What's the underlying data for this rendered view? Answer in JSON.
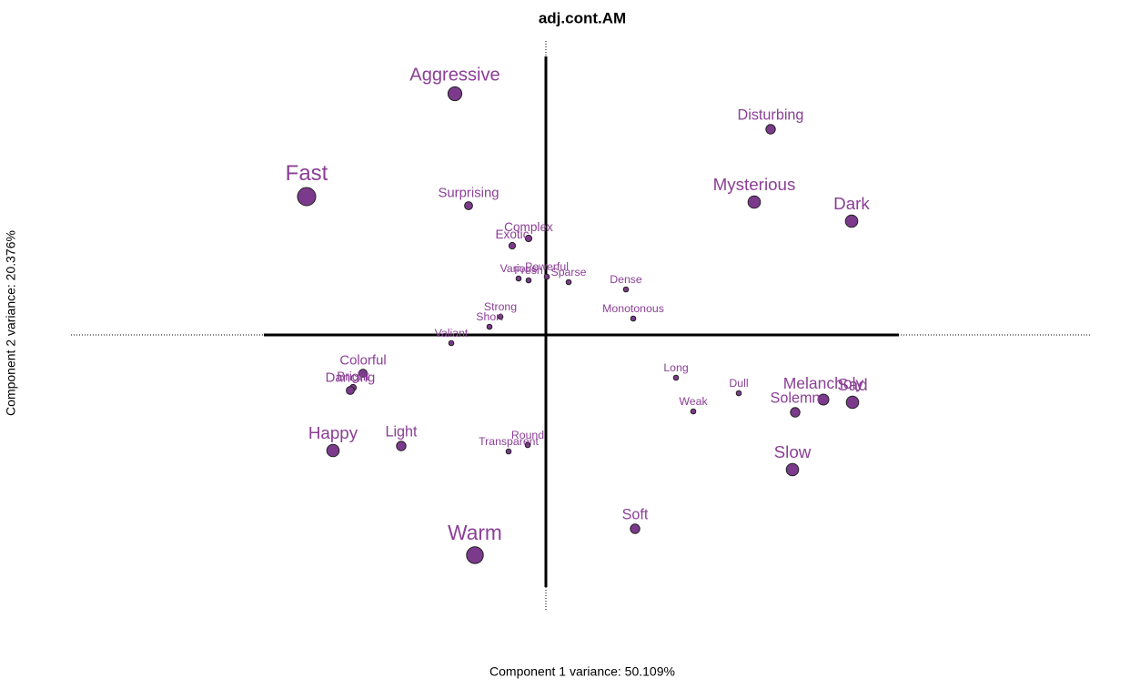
{
  "chart_data": {
    "type": "scatter",
    "title": "adj.cont.AM",
    "x_label": "Component 1 variance: 50.109%",
    "y_label": "Component 2 variance: 20.376%",
    "xlim": [
      -5.22,
      6.0
    ],
    "ylim": [
      -3.02,
      3.23
    ],
    "color": "#7b3a8c",
    "label_color": "#8b3f96",
    "labels": [
      "Aggressive",
      "Fast",
      "Disturbing",
      "Mysterious",
      "Dark",
      "Surprising",
      "Complex",
      "Exotic",
      "Various",
      "Fresh",
      "Powerful",
      "Sparse",
      "Dense",
      "Monotonous",
      "Strong",
      "Short",
      "Valiant",
      "Colorful",
      "Bright",
      "Dancing",
      "Happy",
      "Light",
      "Transparent",
      "Round",
      "Warm",
      "Soft",
      "Long",
      "Weak",
      "Dull",
      "Melancholy",
      "Solemn",
      "Sad",
      "Slow"
    ],
    "x": [
      -1.0,
      -2.63,
      2.47,
      2.29,
      3.36,
      -0.85,
      -0.19,
      -0.37,
      -0.3,
      -0.19,
      0.01,
      0.25,
      0.88,
      0.96,
      -0.5,
      -0.62,
      -1.04,
      -2.01,
      -2.12,
      -2.15,
      -2.34,
      -1.59,
      -0.41,
      -0.2,
      -0.78,
      0.98,
      1.43,
      1.62,
      2.12,
      3.05,
      2.74,
      3.37,
      2.71
    ],
    "values": [
      2.65,
      1.52,
      2.26,
      1.46,
      1.25,
      1.42,
      1.06,
      0.98,
      0.62,
      0.6,
      0.64,
      0.58,
      0.5,
      0.18,
      0.2,
      0.09,
      -0.09,
      -0.42,
      -0.58,
      -0.61,
      -1.27,
      -1.22,
      -1.28,
      -1.21,
      -2.42,
      -2.13,
      -0.47,
      -0.84,
      -0.64,
      -0.71,
      -0.85,
      -0.74,
      -1.48
    ],
    "sizes": [
      7,
      10,
      4,
      6,
      6,
      3,
      2,
      2,
      1,
      1,
      1,
      1,
      1,
      1,
      1,
      1,
      1,
      3,
      2,
      3,
      6,
      4,
      1,
      1,
      9,
      4,
      1,
      1,
      1,
      5,
      4,
      6,
      6
    ]
  }
}
